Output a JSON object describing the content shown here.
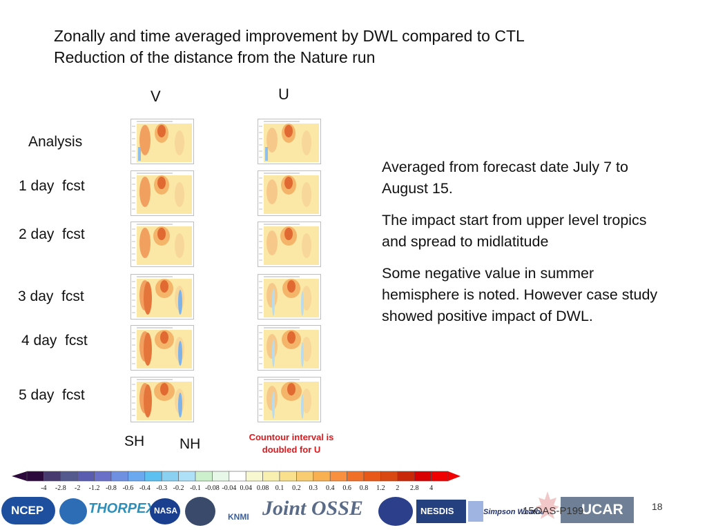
{
  "title": {
    "line1": "Zonally and time averaged improvement by DWL compared to CTL",
    "line2": "Reduction of the distance from the Nature run"
  },
  "columns": {
    "v": "V",
    "u": "U"
  },
  "rows": [
    "Analysis",
    "1 day  fcst",
    "2 day  fcst",
    "3 day  fcst",
    "4 day  fcst",
    "5 day  fcst"
  ],
  "axis_labels": {
    "sh": "SH",
    "nh": "NH"
  },
  "notes": [
    "Averaged from forecast date July 7 to August 15.",
    "The impact start from upper level tropics and spread to midlatitude",
    "Some negative value in summer hemisphere is noted.  However case study showed positive impact of DWL."
  ],
  "red_note": {
    "line1": "Countour interval is",
    "line2": "doubled for U"
  },
  "colorbar": {
    "ticks": [
      "-4",
      "-2.8",
      "-2",
      "-1.2",
      "-0.8",
      "-0.6",
      "-0.4",
      "-0.3",
      "-0.2",
      "-0.1",
      "-0.08",
      "-0.04",
      "0.04",
      "0.08",
      "0.1",
      "0.2",
      "0.3",
      "0.4",
      "0.6",
      "0.8",
      "1.2",
      "2",
      "2.8",
      "4"
    ],
    "colors": [
      "#2d0a3c",
      "#473a6e",
      "#555a8e",
      "#5a5cb0",
      "#6a70c8",
      "#6f8fe0",
      "#6aa8f0",
      "#5cc0f0",
      "#8ad0f0",
      "#aee0f8",
      "#ccf0cc",
      "#e8f8e8",
      "#ffffff",
      "#f8f8d0",
      "#f8f0b0",
      "#f8e08c",
      "#f8cc70",
      "#f8b050",
      "#f89040",
      "#f07028",
      "#e85818",
      "#d84810",
      "#c82808",
      "#d80000",
      "#f00000"
    ]
  },
  "footer": {
    "logos": [
      "NCEP",
      "THORPEX",
      "NASA",
      "KNMI",
      "Joint OSSE",
      "NESDIS",
      "Simpson Weather",
      "UCAR"
    ],
    "slide_code": "15OAS-P199",
    "page_number": "18"
  }
}
